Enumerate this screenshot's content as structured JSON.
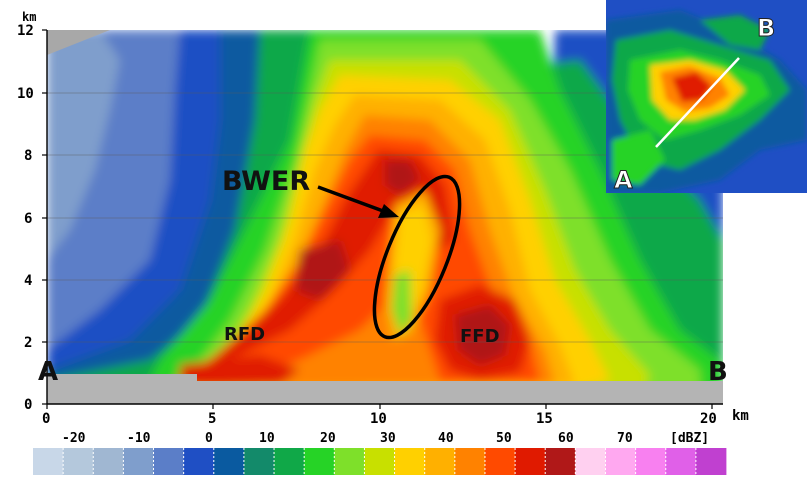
{
  "axes": {
    "y_unit": "km",
    "x_unit": "km",
    "y_ticks": [
      "0",
      "2",
      "4",
      "6",
      "8",
      "10",
      "12"
    ],
    "x_ticks": [
      "0",
      "5",
      "10",
      "15",
      "20"
    ]
  },
  "section": {
    "start_label": "A",
    "end_label": "B"
  },
  "annotations": {
    "bwer": "BWER",
    "rfd": "RFD",
    "ffd": "FFD"
  },
  "inset": {
    "start_label": "A",
    "end_label": "B"
  },
  "colorbar": {
    "unit": "[dBZ]",
    "labels": [
      "-20",
      "-10",
      "0",
      "10",
      "20",
      "30",
      "40",
      "50",
      "60",
      "70"
    ],
    "colors": [
      "#c8d7e8",
      "#b4c8dc",
      "#a0b7d2",
      "#7f9ecc",
      "#5b7ec8",
      "#1f4fc4",
      "#0a5aa0",
      "#138a6a",
      "#10a848",
      "#26d326",
      "#7ee02a",
      "#c8e000",
      "#ffd000",
      "#ffb000",
      "#ff8200",
      "#ff4a00",
      "#e01a00",
      "#b01818",
      "#ffd0f0",
      "#ffa8f0",
      "#f880f0",
      "#e060e8",
      "#c040d0"
    ]
  }
}
